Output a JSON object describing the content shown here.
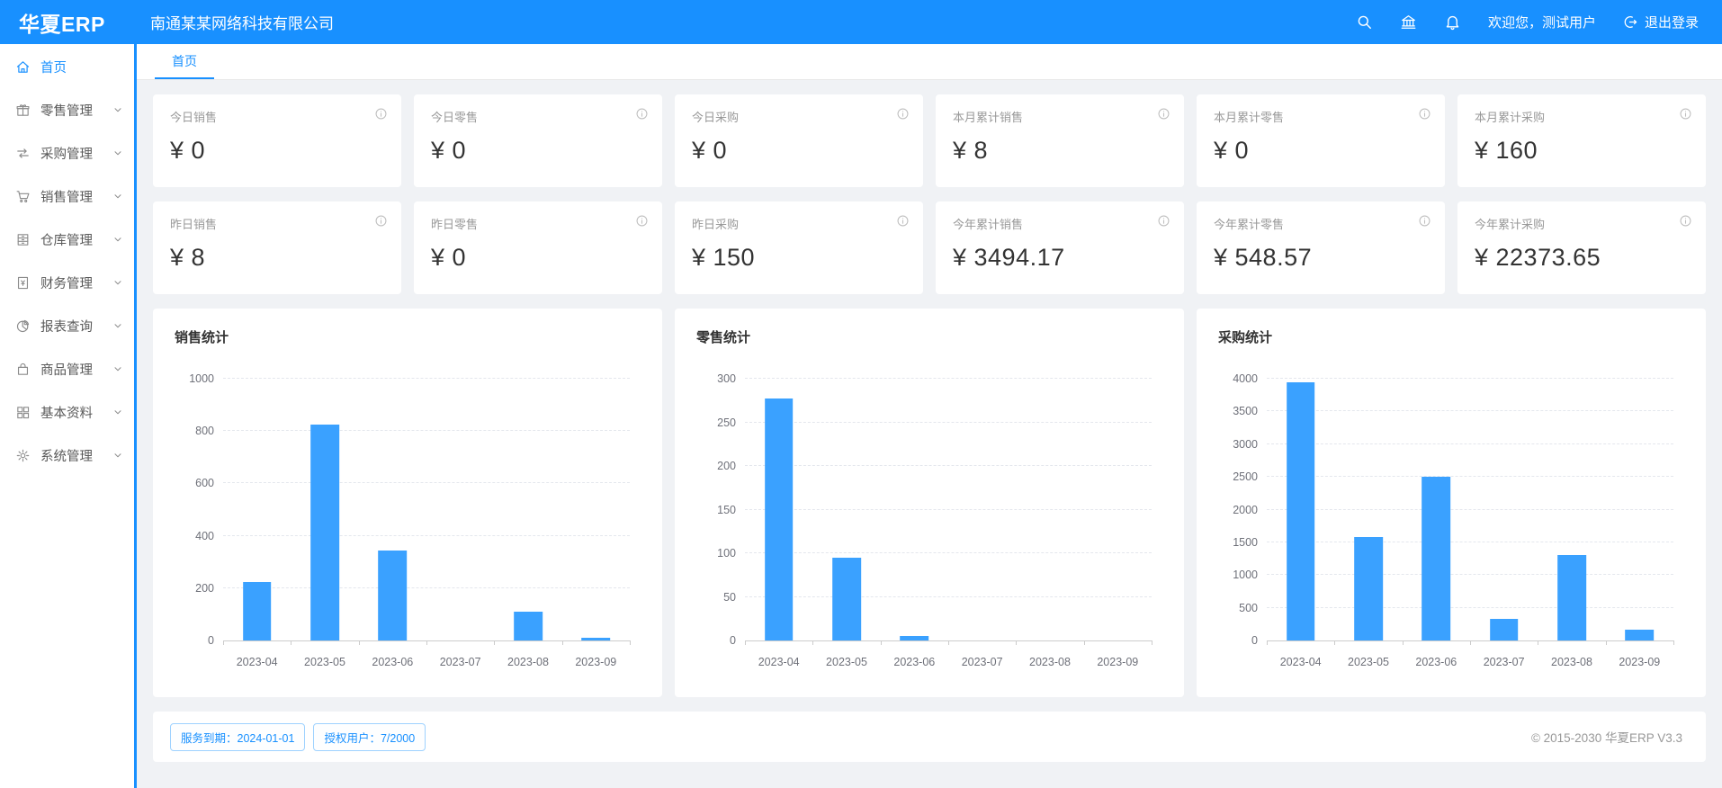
{
  "header": {
    "logo": "华夏ERP",
    "company": "南通某某网络科技有限公司",
    "welcome": "欢迎您，测试用户",
    "logout_label": "退出登录"
  },
  "sidebar": {
    "items": [
      {
        "id": "home",
        "label": "首页",
        "icon": "home-icon",
        "active": true,
        "chevron": false
      },
      {
        "id": "retail",
        "label": "零售管理",
        "icon": "retail-icon",
        "active": false,
        "chevron": true
      },
      {
        "id": "purchase",
        "label": "采购管理",
        "icon": "purchase-icon",
        "active": false,
        "chevron": true
      },
      {
        "id": "sales",
        "label": "销售管理",
        "icon": "sales-icon",
        "active": false,
        "chevron": true
      },
      {
        "id": "warehouse",
        "label": "仓库管理",
        "icon": "warehouse-icon",
        "active": false,
        "chevron": true
      },
      {
        "id": "finance",
        "label": "财务管理",
        "icon": "finance-icon",
        "active": false,
        "chevron": true
      },
      {
        "id": "reports",
        "label": "报表查询",
        "icon": "reports-icon",
        "active": false,
        "chevron": true
      },
      {
        "id": "goods",
        "label": "商品管理",
        "icon": "goods-icon",
        "active": false,
        "chevron": true
      },
      {
        "id": "basic",
        "label": "基本资料",
        "icon": "basic-icon",
        "active": false,
        "chevron": true
      },
      {
        "id": "system",
        "label": "系统管理",
        "icon": "system-icon",
        "active": false,
        "chevron": true
      }
    ]
  },
  "tabs": {
    "active": "首页"
  },
  "stat_cards": [
    {
      "id": "today-sales",
      "label": "今日销售",
      "value": "¥ 0"
    },
    {
      "id": "today-retail",
      "label": "今日零售",
      "value": "¥ 0"
    },
    {
      "id": "today-purchase",
      "label": "今日采购",
      "value": "¥ 0"
    },
    {
      "id": "month-sales",
      "label": "本月累计销售",
      "value": "¥ 8"
    },
    {
      "id": "month-retail",
      "label": "本月累计零售",
      "value": "¥ 0"
    },
    {
      "id": "month-purchase",
      "label": "本月累计采购",
      "value": "¥ 160"
    },
    {
      "id": "yesterday-sales",
      "label": "昨日销售",
      "value": "¥ 8"
    },
    {
      "id": "yesterday-retail",
      "label": "昨日零售",
      "value": "¥ 0"
    },
    {
      "id": "yesterday-purchase",
      "label": "昨日采购",
      "value": "¥ 150"
    },
    {
      "id": "year-sales",
      "label": "今年累计销售",
      "value": "¥ 3494.17"
    },
    {
      "id": "year-retail",
      "label": "今年累计零售",
      "value": "¥ 548.57"
    },
    {
      "id": "year-purchase",
      "label": "今年累计采购",
      "value": "¥ 22373.65"
    }
  ],
  "chart_data": [
    {
      "id": "sales",
      "type": "bar",
      "title": "销售统计",
      "categories": [
        "2023-04",
        "2023-05",
        "2023-06",
        "2023-07",
        "2023-08",
        "2023-09"
      ],
      "values": [
        225,
        825,
        345,
        0,
        110,
        8
      ],
      "ylim": [
        0,
        1000
      ],
      "ytick_step": 200,
      "grid": true,
      "legend": "none"
    },
    {
      "id": "retail",
      "type": "bar",
      "title": "零售统计",
      "categories": [
        "2023-04",
        "2023-05",
        "2023-06",
        "2023-07",
        "2023-08",
        "2023-09"
      ],
      "values": [
        277,
        95,
        5,
        0,
        0,
        0
      ],
      "ylim": [
        0,
        300
      ],
      "ytick_step": 50,
      "grid": true,
      "legend": "none"
    },
    {
      "id": "purchase",
      "type": "bar",
      "title": "采购统计",
      "categories": [
        "2023-04",
        "2023-05",
        "2023-06",
        "2023-07",
        "2023-08",
        "2023-09"
      ],
      "values": [
        3950,
        1580,
        2500,
        330,
        1300,
        160
      ],
      "ylim": [
        0,
        4000
      ],
      "ytick_step": 500,
      "grid": true,
      "legend": "none"
    }
  ],
  "footer": {
    "service_expiry": "服务到期：2024-01-01",
    "licensed_users": "授权用户：7/2000",
    "copyright": "© 2015-2030 华夏ERP V3.3"
  },
  "colors": {
    "primary": "#1890ff",
    "bar": "#3aa1ff",
    "content_bg": "#f0f2f5"
  }
}
